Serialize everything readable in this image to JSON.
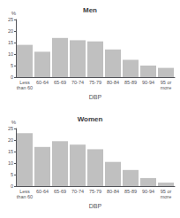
{
  "chart_data": [
    {
      "type": "bar",
      "title": "Men",
      "categories": [
        "Less\nthan 60",
        "60-64",
        "65-69",
        "70-74",
        "75-79",
        "80-84",
        "85-89",
        "90-94",
        "95 or\nmore"
      ],
      "values": [
        14,
        11,
        17,
        16,
        15.5,
        12,
        7.5,
        5,
        4
      ],
      "color": "#c0c0c0",
      "xlabel": "DBP",
      "ylabel": "%",
      "ylim": [
        0,
        25
      ],
      "yticks": [
        0,
        5,
        10,
        15,
        20,
        25
      ],
      "grid": false
    },
    {
      "type": "bar",
      "title": "Women",
      "categories": [
        "Less\nthan 60",
        "60-64",
        "65-69",
        "70-74",
        "75-79",
        "80-84",
        "85-89",
        "90-94",
        "95 or\nmore"
      ],
      "values": [
        23,
        17,
        19.5,
        18,
        16,
        10.5,
        7,
        3.5,
        1.5
      ],
      "color": "#c0c0c0",
      "xlabel": "DBP",
      "ylabel": "%",
      "ylim": [
        0,
        25
      ],
      "yticks": [
        0,
        5,
        10,
        15,
        20,
        25
      ],
      "grid": false
    }
  ]
}
